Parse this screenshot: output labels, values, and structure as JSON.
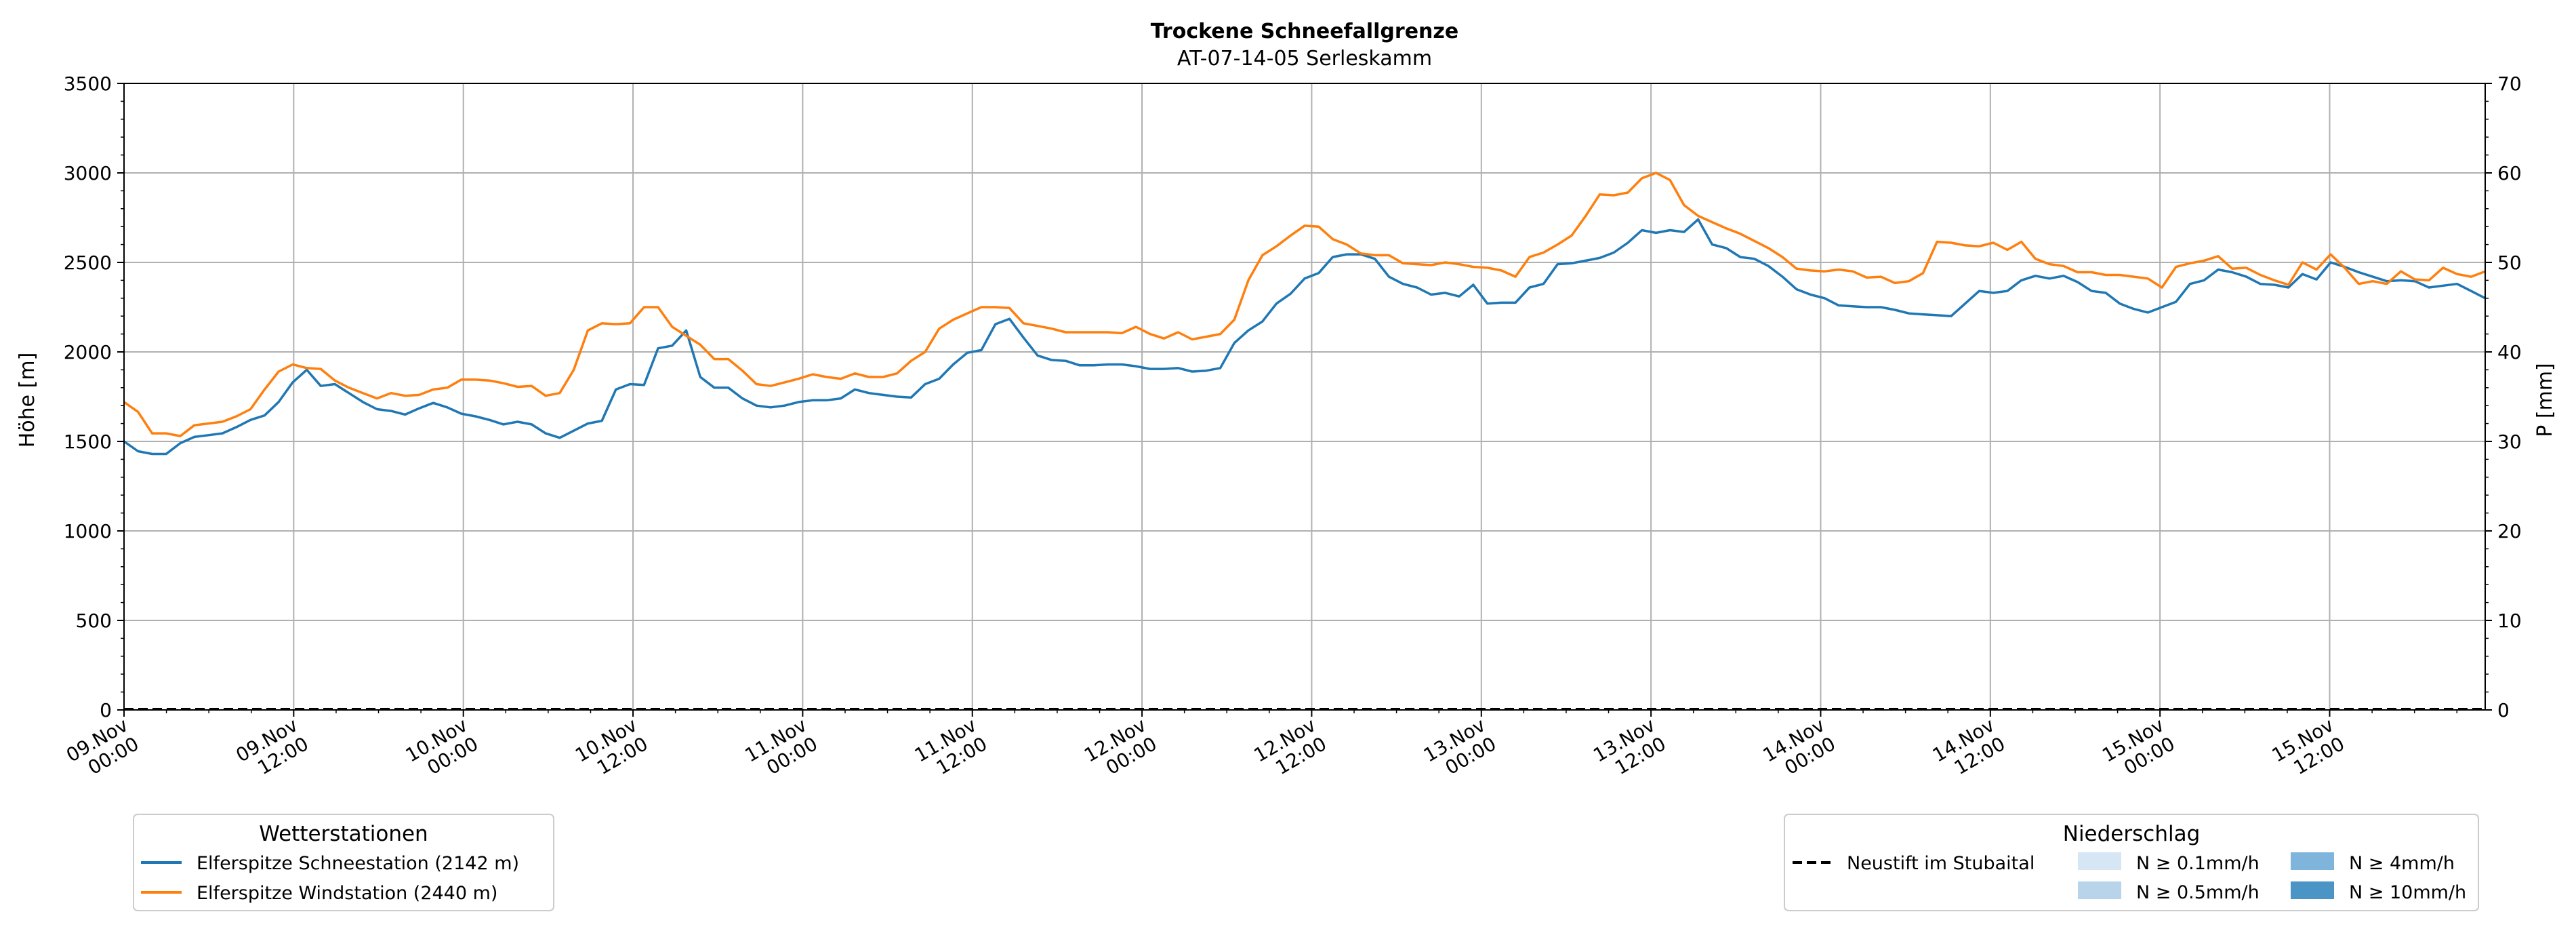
{
  "colors": {
    "series1": "#1f77b4",
    "series2": "#ff7f0e",
    "grid": "#b0b0b0",
    "precip_dashed": "#000000",
    "precip_levels": [
      "#d6e6f4",
      "#b7d4ea",
      "#7fb4dc",
      "#4a94c6"
    ]
  },
  "chart_data": {
    "type": "line",
    "title": "Trockene Schneefallgrenze",
    "subtitle": "AT-07-14-05 Serleskamm",
    "ylabel": "Höhe [m]",
    "y2label": "P [mm]",
    "ylim": [
      0,
      3500
    ],
    "y2lim": [
      0,
      70
    ],
    "yticks": [
      "0",
      "500",
      "1000",
      "1500",
      "2000",
      "2500",
      "3000",
      "3500"
    ],
    "y2ticks": [
      "0",
      "10",
      "20",
      "30",
      "40",
      "50",
      "60",
      "70"
    ],
    "xticks": [
      {
        "date": "09.Nov",
        "time": "00:00"
      },
      {
        "date": "09.Nov",
        "time": "12:00"
      },
      {
        "date": "10.Nov",
        "time": "00:00"
      },
      {
        "date": "10.Nov",
        "time": "12:00"
      },
      {
        "date": "11.Nov",
        "time": "00:00"
      },
      {
        "date": "11.Nov",
        "time": "12:00"
      },
      {
        "date": "12.Nov",
        "time": "00:00"
      },
      {
        "date": "12.Nov",
        "time": "12:00"
      },
      {
        "date": "13.Nov",
        "time": "00:00"
      },
      {
        "date": "13.Nov",
        "time": "12:00"
      },
      {
        "date": "14.Nov",
        "time": "00:00"
      },
      {
        "date": "14.Nov",
        "time": "12:00"
      },
      {
        "date": "15.Nov",
        "time": "00:00"
      },
      {
        "date": "15.Nov",
        "time": "12:00"
      }
    ],
    "x_start": "09.Nov 00:00",
    "x_step_hours": 1,
    "grid": true,
    "series": [
      {
        "name": "Elferspitze Schneestation (2142 m)",
        "legend_group": "Wetterstationen",
        "values": [
          1500,
          1445,
          1430,
          1430,
          1490,
          1525,
          1535,
          1545,
          1580,
          1620,
          1645,
          1720,
          1830,
          1900,
          1810,
          1820,
          1770,
          1720,
          1680,
          1670,
          1650,
          1685,
          1715,
          1690,
          1655,
          1640,
          1620,
          1595,
          1610,
          1595,
          1545,
          1520,
          1560,
          1600,
          1615,
          1790,
          1820,
          1815,
          2020,
          2035,
          2120,
          1860,
          1800,
          1800,
          1740,
          1700,
          1690,
          1700,
          1720,
          1730,
          1730,
          1740,
          1790,
          1770,
          1760,
          1750,
          1745,
          1820,
          1850,
          1930,
          1995,
          2010,
          2155,
          2185,
          2080,
          1980,
          1955,
          1950,
          1925,
          1925,
          1930,
          1930,
          1920,
          1905,
          1905,
          1910,
          1890,
          1895,
          1910,
          2050,
          2120,
          2170,
          2270,
          2325,
          2410,
          2440,
          2530,
          2545,
          2545,
          2520,
          2420,
          2380,
          2360,
          2320,
          2330,
          2310,
          2375,
          2270,
          2275,
          2275,
          2360,
          2380,
          2490,
          2495,
          2510,
          2525,
          2555,
          2610,
          2680,
          2665,
          2680,
          2670,
          2740,
          2600,
          2580,
          2530,
          2520,
          2480,
          2420,
          2350,
          2320,
          2300,
          2260,
          2255,
          2250,
          2250,
          2235,
          2215,
          2210,
          2205,
          2200,
          2270,
          2340,
          2330,
          2340,
          2400,
          2425,
          2410,
          2425,
          2390,
          2340,
          2330,
          2270,
          2240,
          2220,
          2250,
          2280,
          2380,
          2400,
          2460,
          2445,
          2420,
          2380,
          2375,
          2360,
          2435,
          2405,
          2500,
          2475,
          2445,
          2420,
          2395,
          2400,
          2395,
          2360,
          2370,
          2380,
          2340,
          2300
        ]
      },
      {
        "name": "Elferspitze Windstation (2440 m)",
        "legend_group": "Wetterstationen",
        "values": [
          1720,
          1665,
          1545,
          1545,
          1530,
          1590,
          1600,
          1610,
          1640,
          1680,
          1790,
          1890,
          1930,
          1910,
          1905,
          1840,
          1800,
          1770,
          1740,
          1770,
          1755,
          1760,
          1790,
          1800,
          1845,
          1845,
          1840,
          1825,
          1805,
          1810,
          1755,
          1770,
          1900,
          2120,
          2160,
          2155,
          2160,
          2250,
          2250,
          2140,
          2090,
          2040,
          1960,
          1960,
          1895,
          1820,
          1810,
          1830,
          1850,
          1875,
          1860,
          1850,
          1880,
          1860,
          1860,
          1880,
          1950,
          2000,
          2130,
          2180,
          2215,
          2250,
          2250,
          2245,
          2160,
          2145,
          2130,
          2110,
          2110,
          2110,
          2110,
          2105,
          2140,
          2100,
          2075,
          2110,
          2070,
          2085,
          2100,
          2180,
          2400,
          2540,
          2590,
          2650,
          2705,
          2700,
          2630,
          2600,
          2550,
          2540,
          2540,
          2495,
          2490,
          2485,
          2500,
          2490,
          2475,
          2470,
          2455,
          2420,
          2530,
          2555,
          2600,
          2650,
          2760,
          2880,
          2875,
          2890,
          2970,
          3000,
          2960,
          2820,
          2760,
          2725,
          2690,
          2660,
          2620,
          2580,
          2530,
          2465,
          2455,
          2450,
          2460,
          2450,
          2415,
          2420,
          2385,
          2395,
          2440,
          2615,
          2610,
          2595,
          2590,
          2610,
          2570,
          2615,
          2520,
          2490,
          2480,
          2445,
          2445,
          2430,
          2430,
          2420,
          2410,
          2360,
          2475,
          2495,
          2510,
          2535,
          2465,
          2470,
          2430,
          2400,
          2375,
          2500,
          2460,
          2545,
          2470,
          2380,
          2395,
          2380,
          2450,
          2405,
          2400,
          2470,
          2435,
          2420,
          2450
        ]
      }
    ],
    "precip_series": {
      "name": "Neustift im Stubaital",
      "values_mm": [
        0
      ]
    },
    "legends": {
      "left": {
        "title": "Wetterstationen",
        "entries": [
          "Elferspitze Schneestation (2142 m)",
          "Elferspitze Windstation (2440 m)"
        ]
      },
      "right": {
        "title": "Niederschlag",
        "line_label": "Neustift im Stubaital",
        "levels": [
          "N ≥ 0.1mm/h",
          "N ≥ 0.5mm/h",
          "N ≥ 4mm/h",
          "N ≥ 10mm/h"
        ]
      }
    }
  }
}
